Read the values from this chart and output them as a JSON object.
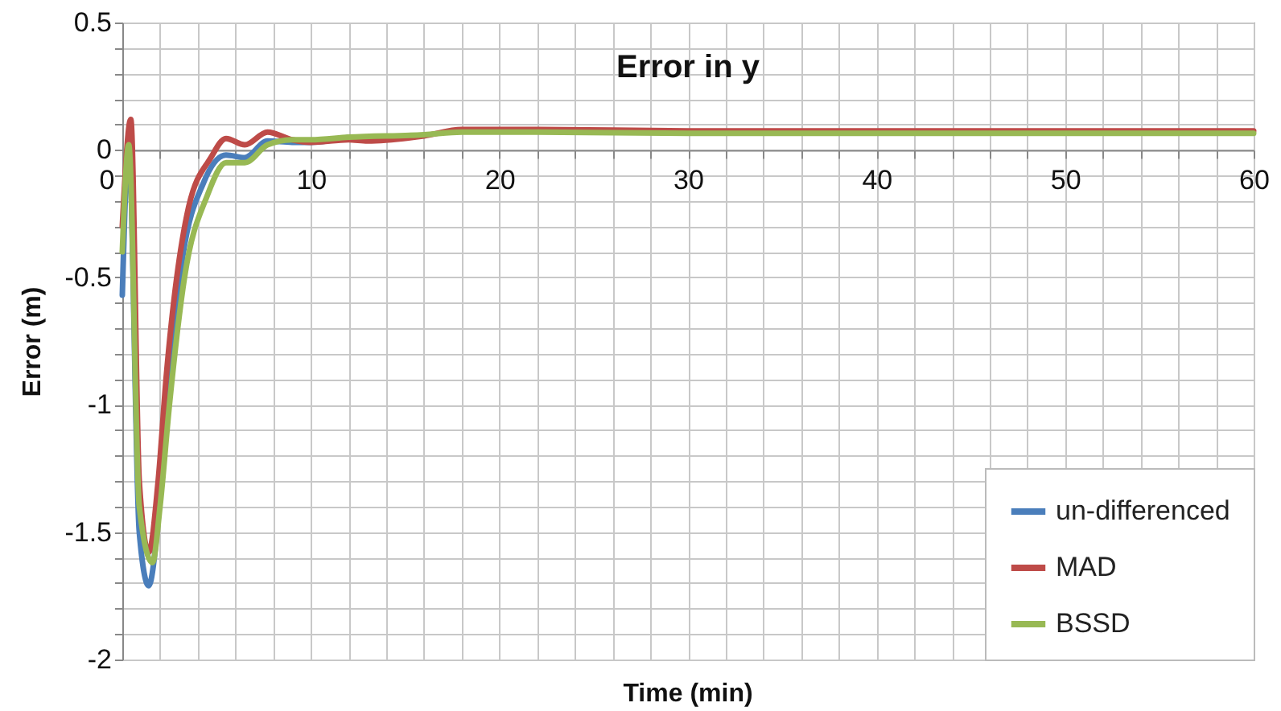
{
  "chart_data": {
    "type": "line",
    "title": "Error in y",
    "xlabel": "Time (min)",
    "ylabel": "Error (m)",
    "xlim": [
      0,
      60
    ],
    "ylim": [
      -2,
      0.5
    ],
    "xticks": [
      0,
      {
        "value": 2,
        "label": null
      },
      {
        "value": 4,
        "label": null
      },
      {
        "value": 6,
        "label": null
      },
      {
        "value": 8,
        "label": null
      },
      10,
      {
        "value": 12,
        "label": null
      },
      {
        "value": 14,
        "label": null
      },
      {
        "value": 16,
        "label": null
      },
      {
        "value": 18,
        "label": null
      },
      20,
      {
        "value": 22,
        "label": null
      },
      {
        "value": 24,
        "label": null
      },
      {
        "value": 26,
        "label": null
      },
      {
        "value": 28,
        "label": null
      },
      30,
      {
        "value": 32,
        "label": null
      },
      {
        "value": 34,
        "label": null
      },
      {
        "value": 36,
        "label": null
      },
      {
        "value": 38,
        "label": null
      },
      40,
      {
        "value": 42,
        "label": null
      },
      {
        "value": 44,
        "label": null
      },
      {
        "value": 46,
        "label": null
      },
      {
        "value": 48,
        "label": null
      },
      50,
      {
        "value": 52,
        "label": null
      },
      {
        "value": 54,
        "label": null
      },
      {
        "value": 56,
        "label": null
      },
      {
        "value": 58,
        "label": null
      },
      60
    ],
    "yticks": [
      -2,
      {
        "value": -1.9,
        "label": null
      },
      {
        "value": -1.8,
        "label": null
      },
      {
        "value": -1.7,
        "label": null
      },
      {
        "value": -1.6,
        "label": null
      },
      -1.5,
      {
        "value": -1.4,
        "label": null
      },
      {
        "value": -1.3,
        "label": null
      },
      {
        "value": -1.2,
        "label": null
      },
      {
        "value": -1.1,
        "label": null
      },
      -1,
      {
        "value": -0.9,
        "label": null
      },
      {
        "value": -0.8,
        "label": null
      },
      {
        "value": -0.7,
        "label": null
      },
      {
        "value": -0.6,
        "label": null
      },
      -0.5,
      {
        "value": -0.4,
        "label": null
      },
      {
        "value": -0.3,
        "label": null
      },
      {
        "value": -0.2,
        "label": null
      },
      {
        "value": -0.1,
        "label": null
      },
      0,
      {
        "value": 0.1,
        "label": null
      },
      {
        "value": 0.2,
        "label": null
      },
      {
        "value": 0.3,
        "label": null
      },
      {
        "value": 0.4,
        "label": null
      },
      0.5
    ],
    "grid": true,
    "legend": "bottom right",
    "marker": "none",
    "line_style": "solid",
    "series": [
      {
        "name": "un-differenced",
        "color": "#4a7ebb",
        "x": [
          0,
          0.34,
          0.9,
          1.4,
          1.9,
          2.33,
          3.2,
          4.3,
          5.5,
          6.5,
          7.7,
          9,
          10,
          12
        ],
        "values": [
          -0.57,
          0.02,
          -1.5,
          -1.71,
          -1.45,
          -1.01,
          -0.42,
          -0.13,
          -0.02,
          -0.03,
          0.035,
          0.03,
          0.03,
          0.05
        ]
      },
      {
        "name": "MAD",
        "color": "#be4b48",
        "x": [
          0,
          0.45,
          0.9,
          1.4,
          1.9,
          2.33,
          3.5,
          4.7,
          5.5,
          6.5,
          7.7,
          9,
          10,
          12,
          13,
          16,
          18,
          22,
          30,
          40,
          50,
          60
        ],
        "values": [
          -0.3,
          0.12,
          -1.3,
          -1.58,
          -1.3,
          -0.89,
          -0.23,
          -0.03,
          0.045,
          0.02,
          0.07,
          0.04,
          0.03,
          0.04,
          0.035,
          0.055,
          0.08,
          0.08,
          0.075,
          0.075,
          0.075,
          0.075
        ]
      },
      {
        "name": "BSSD",
        "color": "#98b954",
        "x": [
          0,
          0.34,
          0.9,
          1.6,
          2.0,
          2.5,
          3.3,
          4.5,
          5.5,
          6.5,
          7.7,
          9,
          10,
          12,
          16,
          18,
          22,
          30,
          40,
          50,
          60
        ],
        "values": [
          -0.4,
          0.02,
          -1.4,
          -1.62,
          -1.4,
          -1.0,
          -0.5,
          -0.18,
          -0.05,
          -0.05,
          0.02,
          0.04,
          0.04,
          0.05,
          0.06,
          0.07,
          0.07,
          0.065,
          0.065,
          0.065,
          0.065
        ]
      }
    ]
  }
}
